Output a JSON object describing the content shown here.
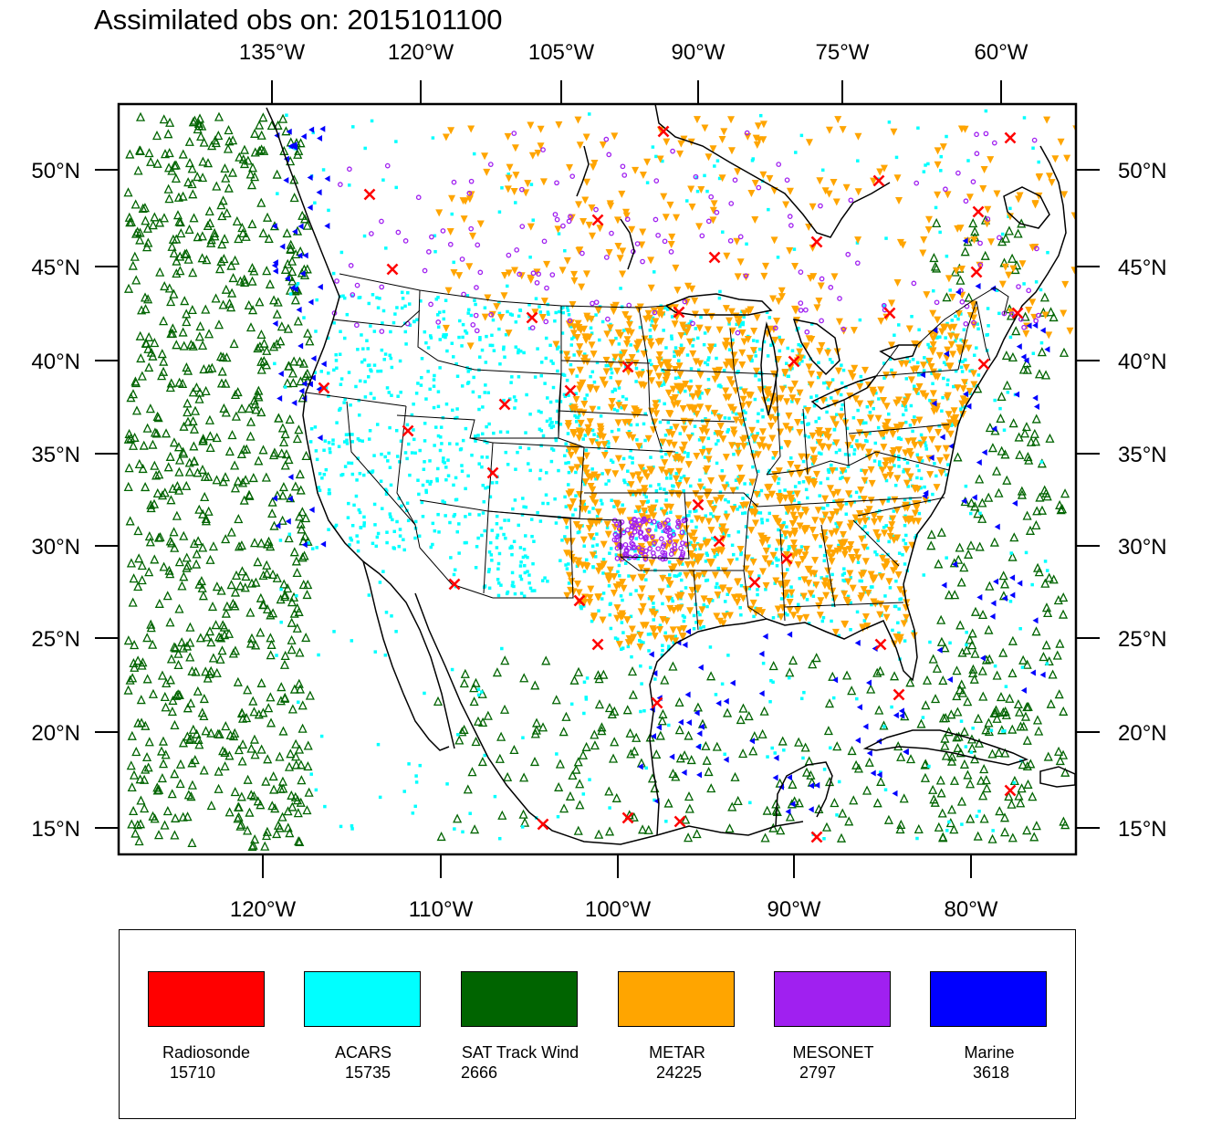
{
  "title": "Assimilated obs on: 2015101100",
  "top_axis_labels": [
    "135°W",
    "120°W",
    "105°W",
    "90°W",
    "75°W",
    "60°W"
  ],
  "bottom_axis_labels": [
    "120°W",
    "110°W",
    "100°W",
    "90°W",
    "80°W"
  ],
  "lat_labels": [
    "50°N",
    "45°N",
    "40°N",
    "35°N",
    "30°N",
    "25°N",
    "20°N",
    "15°N"
  ],
  "colors": {
    "radiosonde": "#ff0000",
    "acars": "#00ffff",
    "sat_track_wind": "#006400",
    "metar": "#ffa500",
    "mesonet": "#a020f0",
    "marine": "#0000ff"
  },
  "legend": [
    {
      "name": "Radiosonde",
      "count": "15710",
      "color": "#ff0000"
    },
    {
      "name": "ACARS",
      "count": "15735",
      "color": "#00ffff"
    },
    {
      "name": "SAT Track Wind",
      "count": "2666",
      "color": "#006400"
    },
    {
      "name": "METAR",
      "count": "24225",
      "color": "#ffa500"
    },
    {
      "name": "MESONET",
      "count": "2797",
      "color": "#a020f0"
    },
    {
      "name": "Marine",
      "count": "3618",
      "color": "#0000ff"
    }
  ]
}
